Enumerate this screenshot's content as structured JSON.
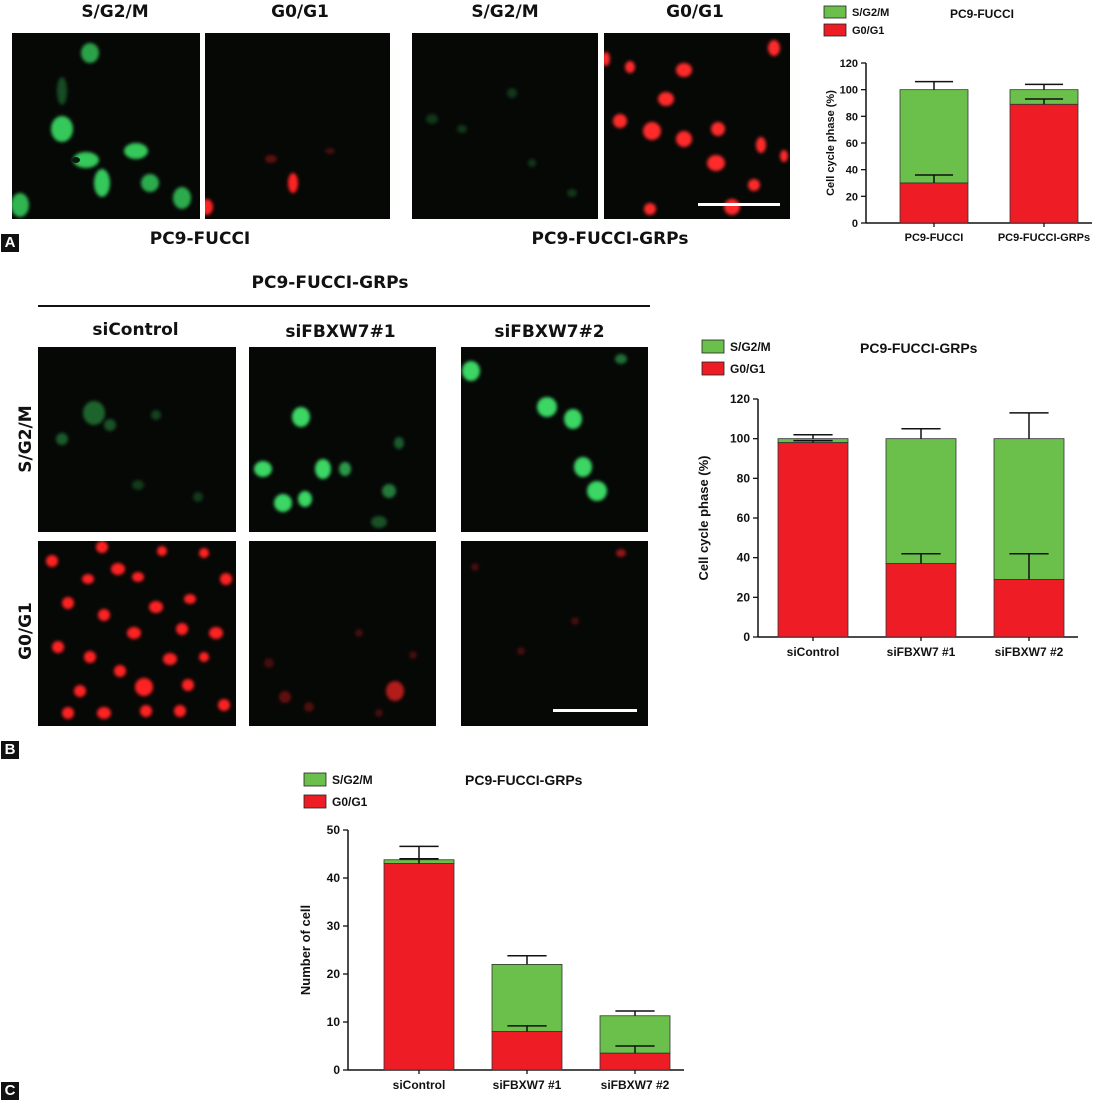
{
  "panel_labels": [
    "A",
    "B",
    "C"
  ],
  "panel_a": {
    "micrograph_headers": [
      "S/G2/M",
      "G0/G1",
      "S/G2/M",
      "G0/G1"
    ],
    "group_captions": [
      "PC9-FUCCI",
      "PC9-FUCCI-GRPs"
    ]
  },
  "panel_b": {
    "group_title": "PC9-FUCCI-GRPs",
    "column_headers": [
      "siControl",
      "siFBXW7#1",
      "siFBXW7#2"
    ],
    "row_labels": [
      "S/G2/M",
      "G0/G1"
    ]
  },
  "colors": {
    "green": "#6ac04a",
    "red": "#ee1c24",
    "fluor_green": "#3fd86a",
    "fluor_red": "#ff2a2a"
  },
  "chart_data": [
    {
      "id": "chartA",
      "type": "bar",
      "stacked": true,
      "title": "PC9-FUCCI",
      "ylabel": "Cell cycle phase (%)",
      "xlabel": "",
      "categories": [
        "PC9-FUCCI",
        "PC9-FUCCI-GRPs"
      ],
      "ylim": [
        0,
        120
      ],
      "yticks": [
        0,
        20,
        40,
        60,
        80,
        100,
        120
      ],
      "legend_position": "top-left",
      "series": [
        {
          "name": "G0/G1",
          "color": "#ee1c24",
          "values": [
            30,
            89
          ],
          "errors": [
            6,
            4
          ]
        },
        {
          "name": "S/G2/M",
          "color": "#6ac04a",
          "values": [
            70,
            11
          ],
          "errors": [
            6,
            4
          ]
        }
      ]
    },
    {
      "id": "chartB",
      "type": "bar",
      "stacked": true,
      "title": "PC9-FUCCI-GRPs",
      "ylabel": "Cell cycle phase (%)",
      "xlabel": "",
      "categories": [
        "siControl",
        "siFBXW7 #1",
        "siFBXW7 #2"
      ],
      "ylim": [
        0,
        120
      ],
      "yticks": [
        0,
        20,
        40,
        60,
        80,
        100,
        120
      ],
      "legend_position": "top-left",
      "series": [
        {
          "name": "G0/G1",
          "color": "#ee1c24",
          "values": [
            98,
            37,
            29
          ],
          "errors": [
            1,
            5,
            13
          ]
        },
        {
          "name": "S/G2/M",
          "color": "#6ac04a",
          "values": [
            2,
            63,
            71
          ],
          "errors": [
            2,
            5,
            13
          ]
        }
      ]
    },
    {
      "id": "chartC",
      "type": "bar",
      "stacked": true,
      "title": "PC9-FUCCI-GRPs",
      "ylabel": "Number of cell",
      "xlabel": "",
      "categories": [
        "siControl",
        "siFBXW7 #1",
        "siFBXW7 #2"
      ],
      "ylim": [
        0,
        50
      ],
      "yticks": [
        0,
        10,
        20,
        30,
        40,
        50
      ],
      "legend_position": "top-left",
      "series": [
        {
          "name": "G0/G1",
          "color": "#ee1c24",
          "values": [
            43,
            8,
            3.5
          ],
          "errors": [
            1,
            1.2,
            1.5
          ]
        },
        {
          "name": "S/G2/M",
          "color": "#6ac04a",
          "values": [
            0.8,
            14,
            7.8
          ],
          "errors": [
            2.8,
            1.8,
            1
          ]
        }
      ]
    }
  ]
}
